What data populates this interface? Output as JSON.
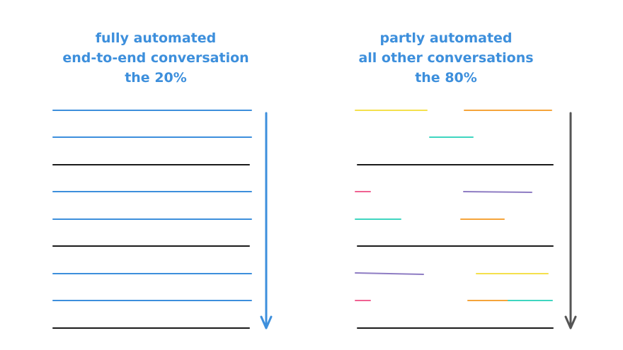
{
  "left_panel": {
    "title_lines": [
      "fully automated",
      "end-to-end conversation",
      "the 20%"
    ],
    "arrow_color": "#3d8fdc",
    "line_colors": {
      "blue": "#3d8fdc",
      "black": "#1a1a1a"
    },
    "rows": [
      "blue",
      "blue",
      "black",
      "blue",
      "blue",
      "black",
      "blue",
      "blue",
      "black"
    ]
  },
  "right_panel": {
    "title_lines": [
      "partly automated",
      "all other conversations",
      "the 80%"
    ],
    "arrow_color": "#555555",
    "segment_colors": {
      "yellow": "#f4e04d",
      "orange": "#f5a43a",
      "teal": "#3fd6c0",
      "black": "#1a1a1a",
      "pink": "#f06292",
      "purple": "#8e7cc3"
    }
  }
}
